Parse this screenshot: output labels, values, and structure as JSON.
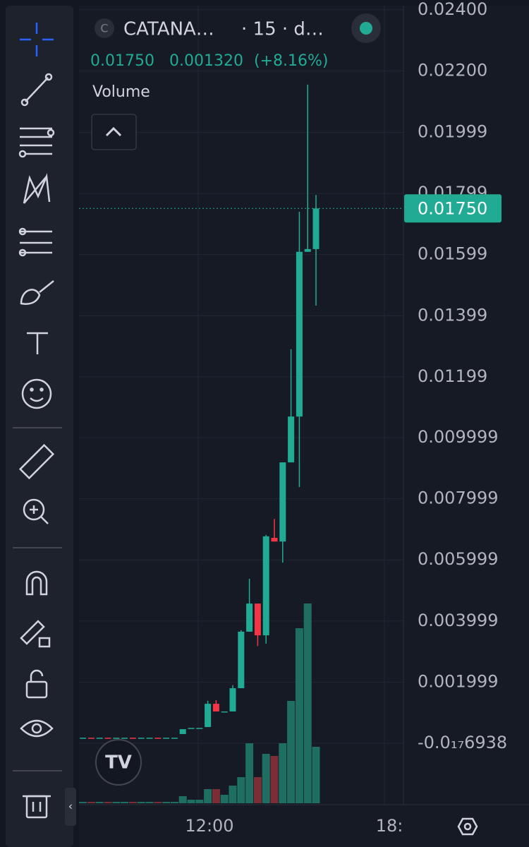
{
  "header": {
    "symbol": "CATANA…",
    "interval": "· 15 · d…",
    "price": "0.01750",
    "change": "0.001320",
    "change_pct": "(+8.16%)",
    "indicator": "Volume",
    "logo_letter": "C"
  },
  "chart_data": {
    "type": "candlestick",
    "up_color": "#22ab94",
    "down_color": "#f23645",
    "volume_up_color": "#1e6f62",
    "volume_down_color": "#7c2e37",
    "open": [
      0.00018,
      0.00018,
      0.00018,
      0.00018,
      0.00018,
      0.00018,
      0.00018,
      0.00018,
      0.00018,
      0.00018,
      0.00018,
      0.00018,
      0.0003,
      0.0005,
      0.0005,
      0.00053,
      0.00129,
      0.00104,
      0.00104,
      0.0018,
      0.00365,
      0.00457,
      0.00353,
      0.00672,
      0.0066,
      0.00919,
      0.01069,
      0.01608,
      0.01617
    ],
    "close": [
      0.00018,
      0.00017,
      0.00018,
      0.00017,
      0.00018,
      0.00018,
      0.00017,
      0.00018,
      0.00018,
      0.00017,
      0.00018,
      0.00018,
      0.00046,
      0.0005,
      0.0005,
      0.00129,
      0.00104,
      0.00104,
      0.0018,
      0.00365,
      0.00457,
      0.00353,
      0.00677,
      0.0066,
      0.00919,
      0.01069,
      0.01608,
      0.01617,
      0.0175
    ],
    "high": [
      0.00018,
      0.00018,
      0.00018,
      0.00018,
      0.00018,
      0.00018,
      0.00018,
      0.00018,
      0.00018,
      0.00018,
      0.00018,
      0.00018,
      0.00046,
      0.0005,
      0.0005,
      0.00139,
      0.00141,
      0.00104,
      0.0019,
      0.0037,
      0.00538,
      0.00457,
      0.00682,
      0.00734,
      0.00919,
      0.01289,
      0.01739,
      0.02155,
      0.01794
    ],
    "low": [
      0.00018,
      0.00017,
      0.00018,
      0.00017,
      0.00018,
      0.00018,
      0.00017,
      0.00018,
      0.00018,
      0.00017,
      0.00018,
      0.00018,
      0.0003,
      0.0005,
      0.0005,
      0.00053,
      0.00104,
      0.00104,
      0.00104,
      0.0018,
      0.00365,
      0.00318,
      0.00326,
      0.0066,
      0.00591,
      0.00919,
      0.00838,
      0.01608,
      0.01432
    ],
    "volume": [
      2,
      2,
      2,
      2,
      2,
      2,
      2,
      2,
      2,
      2,
      2,
      2,
      10,
      5,
      5,
      20,
      20,
      12,
      25,
      37,
      85,
      37,
      70,
      67,
      85,
      145,
      248,
      283,
      80
    ],
    "ylim": [
      -0.00201,
      0.02432
    ],
    "yticks": [
      {
        "value": 0.024,
        "label": "0.02400"
      },
      {
        "value": 0.022,
        "label": "0.02200"
      },
      {
        "value": 0.01999,
        "label": "0.01999"
      },
      {
        "value": 0.01799,
        "label": "0.01799"
      },
      {
        "value": 0.01599,
        "label": "0.01599"
      },
      {
        "value": 0.01399,
        "label": "0.01399"
      },
      {
        "value": 0.01199,
        "label": "0.01199"
      },
      {
        "value": 0.009999,
        "label": "0.009999"
      },
      {
        "value": 0.007999,
        "label": "0.007999"
      },
      {
        "value": 0.005999,
        "label": "0.005999"
      },
      {
        "value": 0.003999,
        "label": "0.003999"
      },
      {
        "value": 0.001999,
        "label": "0.001999"
      },
      {
        "value": -6.938e-18,
        "label": "-0.0₁₇6938"
      }
    ],
    "last_price": 0.0175,
    "x_labels": [
      "12:00",
      "18:"
    ],
    "grid": true
  }
}
